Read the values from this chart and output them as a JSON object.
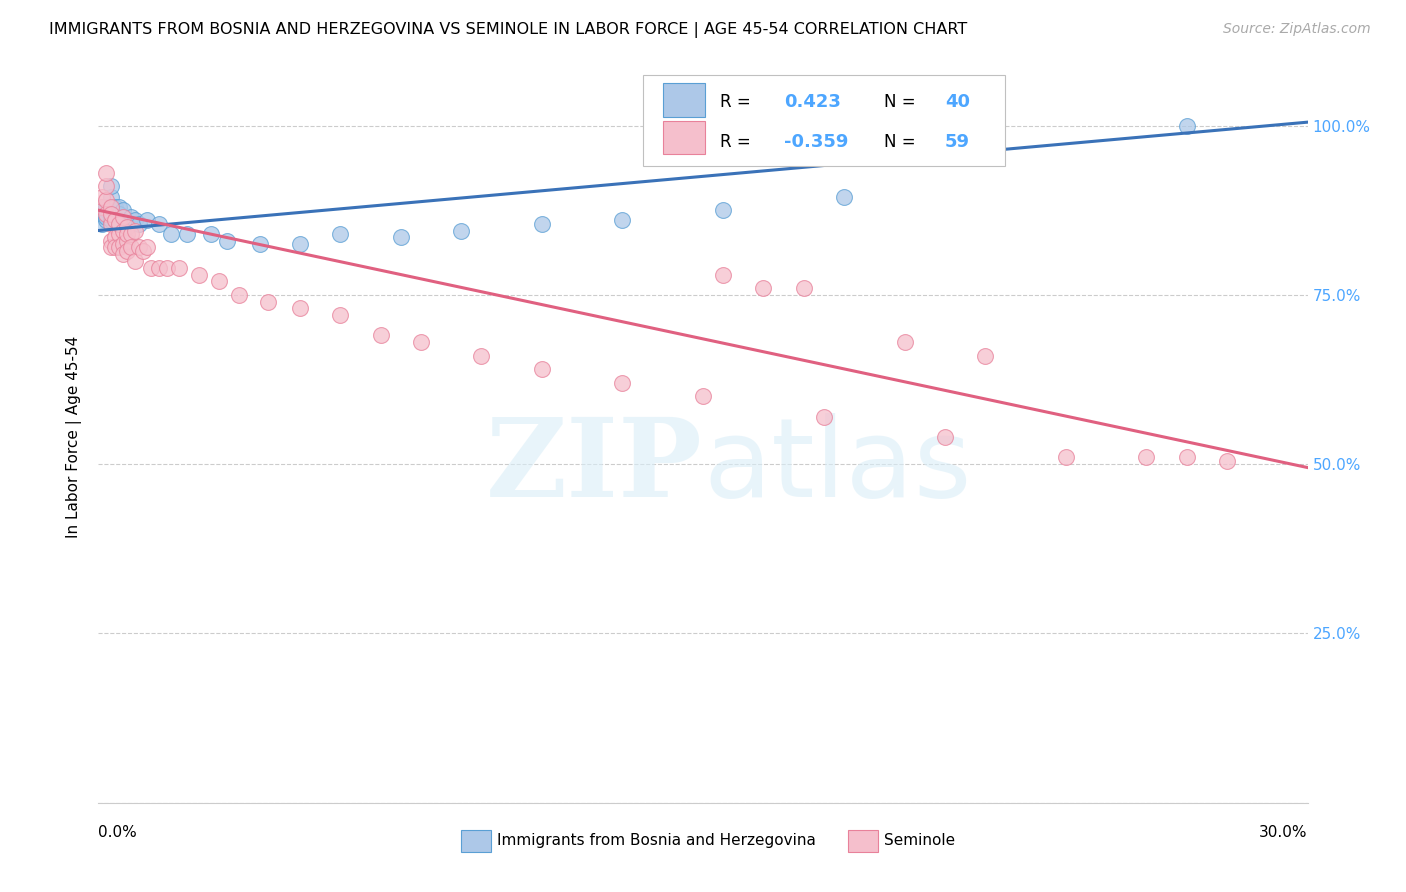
{
  "title": "IMMIGRANTS FROM BOSNIA AND HERZEGOVINA VS SEMINOLE IN LABOR FORCE | AGE 45-54 CORRELATION CHART",
  "source": "Source: ZipAtlas.com",
  "ylabel": "In Labor Force | Age 45-54",
  "ytick_values": [
    0.0,
    0.25,
    0.5,
    0.75,
    1.0
  ],
  "ytick_labels": [
    "",
    "25.0%",
    "50.0%",
    "75.0%",
    "100.0%"
  ],
  "xlim": [
    0.0,
    0.3
  ],
  "ylim": [
    0.0,
    1.08
  ],
  "legend_bosnia_R": "0.423",
  "legend_bosnia_N": "40",
  "legend_seminole_R": "-0.359",
  "legend_seminole_N": "59",
  "color_bosnia_fill": "#adc8e8",
  "color_bosnia_edge": "#5a9fd4",
  "color_seminole_fill": "#f5bfcc",
  "color_seminole_edge": "#e8819a",
  "color_line_bosnia": "#3a72b8",
  "color_line_seminole": "#e06080",
  "color_ytick_label": "#4da6ff",
  "color_grid": "#cccccc",
  "bosnia_line_x0": 0.0,
  "bosnia_line_y0": 0.845,
  "bosnia_line_x1": 0.3,
  "bosnia_line_y1": 1.005,
  "seminole_line_x0": 0.0,
  "seminole_line_y0": 0.875,
  "seminole_line_x1": 0.3,
  "seminole_line_y1": 0.495,
  "bosnia_x": [
    0.001,
    0.001,
    0.001,
    0.002,
    0.002,
    0.002,
    0.002,
    0.003,
    0.003,
    0.003,
    0.003,
    0.003,
    0.004,
    0.004,
    0.004,
    0.005,
    0.005,
    0.005,
    0.006,
    0.006,
    0.007,
    0.008,
    0.009,
    0.01,
    0.012,
    0.015,
    0.018,
    0.022,
    0.028,
    0.032,
    0.04,
    0.05,
    0.06,
    0.075,
    0.09,
    0.11,
    0.13,
    0.155,
    0.185,
    0.27
  ],
  "bosnia_y": [
    0.855,
    0.87,
    0.88,
    0.86,
    0.875,
    0.865,
    0.88,
    0.87,
    0.86,
    0.88,
    0.895,
    0.91,
    0.875,
    0.86,
    0.88,
    0.865,
    0.88,
    0.87,
    0.865,
    0.875,
    0.855,
    0.865,
    0.86,
    0.855,
    0.86,
    0.855,
    0.84,
    0.84,
    0.84,
    0.83,
    0.825,
    0.825,
    0.84,
    0.835,
    0.845,
    0.855,
    0.86,
    0.875,
    0.895,
    1.0
  ],
  "seminole_x": [
    0.001,
    0.001,
    0.002,
    0.002,
    0.002,
    0.002,
    0.003,
    0.003,
    0.003,
    0.003,
    0.003,
    0.004,
    0.004,
    0.004,
    0.005,
    0.005,
    0.005,
    0.006,
    0.006,
    0.006,
    0.006,
    0.007,
    0.007,
    0.007,
    0.007,
    0.008,
    0.008,
    0.009,
    0.009,
    0.01,
    0.011,
    0.012,
    0.013,
    0.015,
    0.017,
    0.02,
    0.025,
    0.03,
    0.035,
    0.042,
    0.05,
    0.06,
    0.07,
    0.08,
    0.095,
    0.11,
    0.13,
    0.15,
    0.18,
    0.21,
    0.24,
    0.26,
    0.27,
    0.28,
    0.155,
    0.165,
    0.175,
    0.2,
    0.22
  ],
  "seminole_y": [
    0.88,
    0.895,
    0.89,
    0.87,
    0.91,
    0.93,
    0.88,
    0.855,
    0.87,
    0.83,
    0.82,
    0.86,
    0.835,
    0.82,
    0.84,
    0.855,
    0.82,
    0.845,
    0.825,
    0.865,
    0.81,
    0.83,
    0.85,
    0.84,
    0.815,
    0.84,
    0.82,
    0.8,
    0.845,
    0.82,
    0.815,
    0.82,
    0.79,
    0.79,
    0.79,
    0.79,
    0.78,
    0.77,
    0.75,
    0.74,
    0.73,
    0.72,
    0.69,
    0.68,
    0.66,
    0.64,
    0.62,
    0.6,
    0.57,
    0.54,
    0.51,
    0.51,
    0.51,
    0.505,
    0.78,
    0.76,
    0.76,
    0.68,
    0.66
  ]
}
